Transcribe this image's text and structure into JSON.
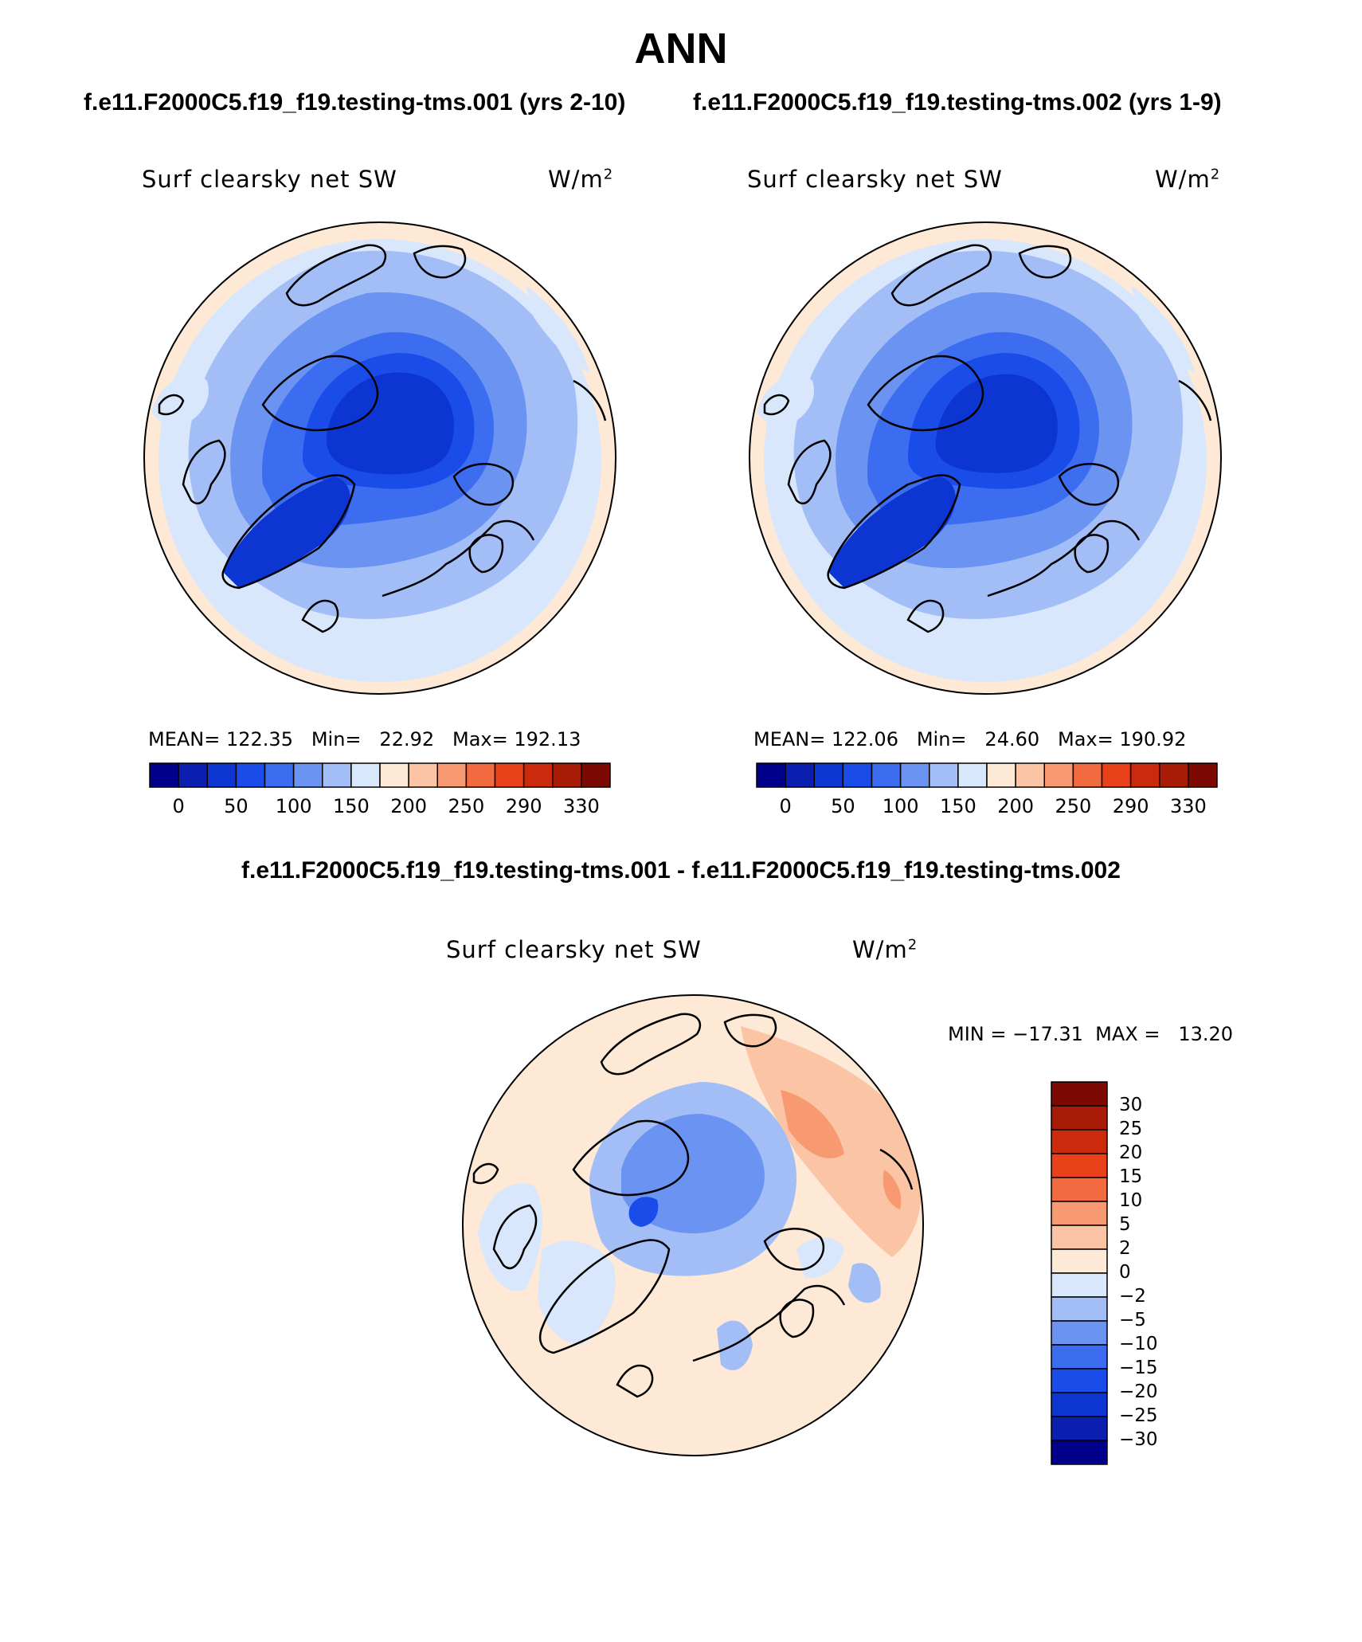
{
  "page": {
    "title": "ANN",
    "case_title_left": "f.e11.F2000C5.f19_f19.testing-tms.001 (yrs 2-10)",
    "case_title_right": "f.e11.F2000C5.f19_f19.testing-tms.002 (yrs 1-9)",
    "diff_title": "f.e11.F2000C5.f19_f19.testing-tms.001 - f.e11.F2000C5.f19_f19.testing-tms.002"
  },
  "panels": {
    "left": {
      "variable": "Surf clearsky net SW",
      "units": "W/m",
      "units_sup": "2",
      "stats_text": "MEAN= 122.35   Min=   22.92   Max= 192.13",
      "stats": {
        "mean": 122.35,
        "min": 22.92,
        "max": 192.13
      }
    },
    "right": {
      "variable": "Surf clearsky net SW",
      "units": "W/m",
      "units_sup": "2",
      "stats_text": "MEAN= 122.06   Min=   24.60   Max= 190.92",
      "stats": {
        "mean": 122.06,
        "min": 24.6,
        "max": 190.92
      }
    },
    "diff": {
      "variable": "Surf clearsky net SW",
      "units": "W/m",
      "units_sup": "2",
      "stats_text": "MIN = −17.31  MAX =   13.20",
      "stats": {
        "min": -17.31,
        "max": 13.2
      }
    }
  },
  "colorbar_main": {
    "colors": [
      "#00008b",
      "#0a1fb0",
      "#0d35d2",
      "#1a4cea",
      "#3c6cf0",
      "#6a93f2",
      "#a3bef7",
      "#d8e7fb",
      "#fde9d6",
      "#fbc5a5",
      "#f79a72",
      "#f26a3f",
      "#e9421b",
      "#cc2a0c",
      "#a81b06",
      "#7c0a02"
    ],
    "tick_labels": [
      "0",
      "50",
      "100",
      "150",
      "200",
      "250",
      "290",
      "330"
    ]
  },
  "colorbar_diff": {
    "colors": [
      "#00008b",
      "#0a1fb0",
      "#0d35d2",
      "#1a4cea",
      "#3c6cf0",
      "#6a93f2",
      "#a3bef7",
      "#d8e7fb",
      "#fde9d6",
      "#fbc5a5",
      "#f79a72",
      "#f26a3f",
      "#e9421b",
      "#cc2a0c",
      "#a81b06",
      "#7c0a02"
    ],
    "tick_labels": [
      "30",
      "25",
      "20",
      "15",
      "10",
      "5",
      "2",
      "0",
      "−2",
      "−5",
      "−10",
      "−15",
      "−20",
      "−25",
      "−30"
    ]
  }
}
